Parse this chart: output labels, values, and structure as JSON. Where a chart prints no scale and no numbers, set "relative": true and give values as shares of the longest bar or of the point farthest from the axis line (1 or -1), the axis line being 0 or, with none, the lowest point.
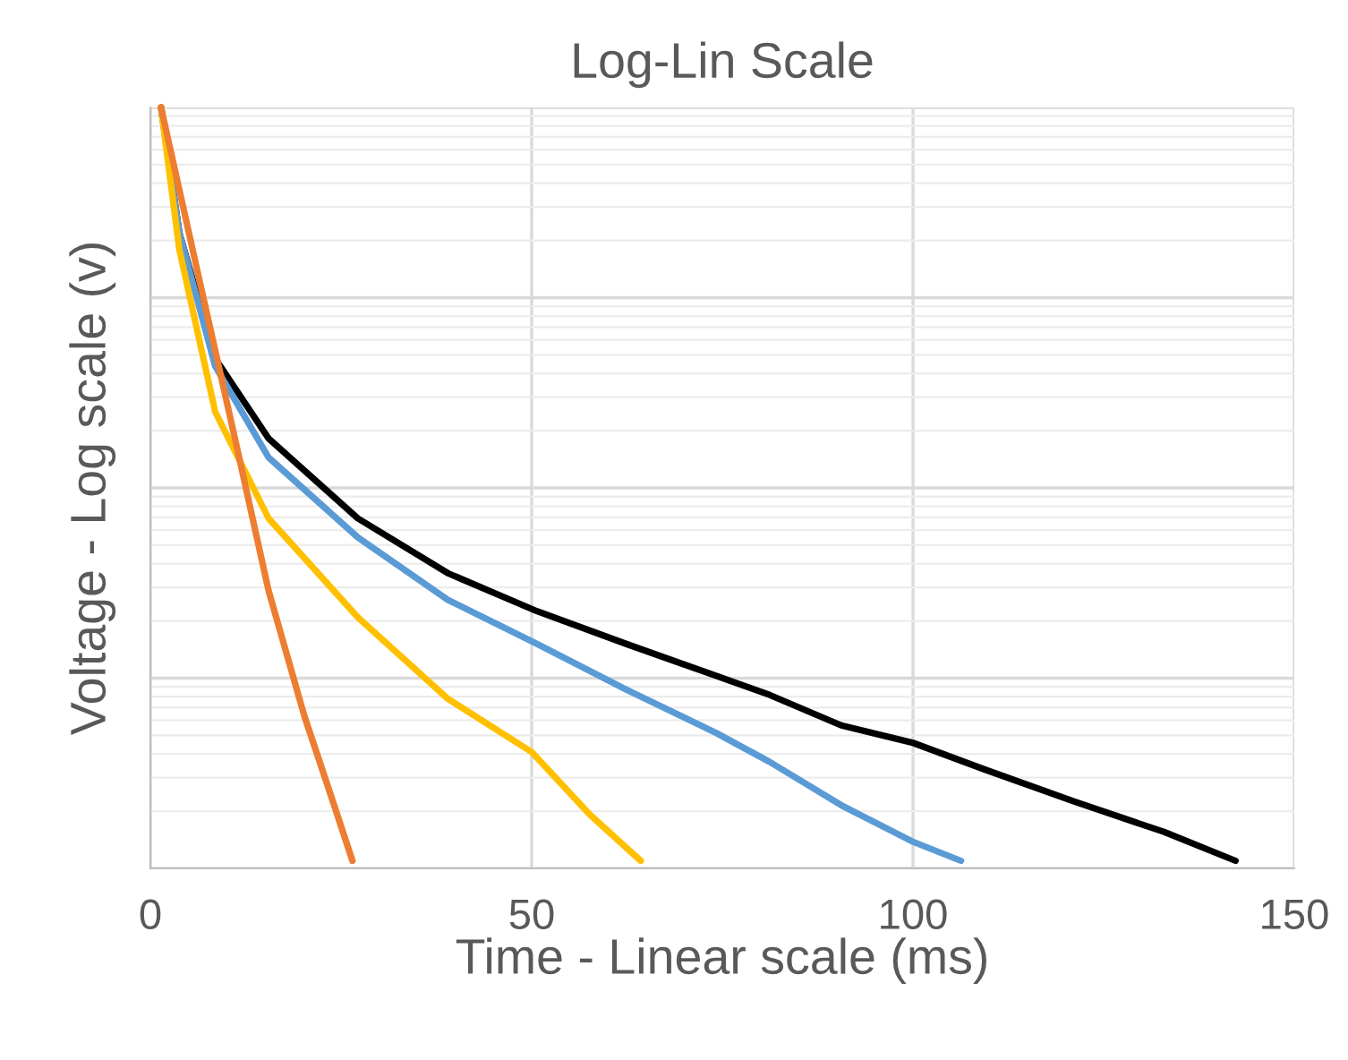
{
  "chart_data": {
    "type": "line",
    "title": "Log-Lin Scale",
    "xlabel": "Time - Linear scale (ms)",
    "ylabel": "Voltage - Log scale (v)",
    "relative": true,
    "grid": true,
    "xlim": [
      0,
      150
    ],
    "xticks": [
      0,
      50,
      100,
      150
    ],
    "tick_labels": "x",
    "line_style": "solid",
    "marker": "none",
    "series": [
      {
        "color": "#000000",
        "x": [
          1.4,
          3.8,
          8.5,
          15.5,
          27.2,
          39,
          50.7,
          62.4,
          74.2,
          81.2,
          90.6,
          100,
          109.4,
          121.1,
          132.9,
          142.3
        ],
        "values": [
          1,
          0.835,
          0.67,
          0.565,
          0.46,
          0.388,
          0.338,
          0.295,
          0.253,
          0.228,
          0.188,
          0.165,
          0.13,
          0.088,
          0.048,
          0.01
        ]
      },
      {
        "color": "#5b9bd5",
        "x": [
          1.4,
          3.8,
          8.5,
          15.5,
          27.2,
          39,
          50.7,
          62.4,
          74.2,
          81.2,
          90.6,
          100,
          106.3
        ],
        "values": [
          1,
          0.835,
          0.66,
          0.54,
          0.435,
          0.353,
          0.295,
          0.235,
          0.178,
          0.14,
          0.083,
          0.035,
          0.01
        ]
      },
      {
        "color": "#ffc000",
        "x": [
          1.4,
          3.8,
          8.5,
          15.5,
          27.2,
          39,
          50,
          57.7,
          64.3
        ],
        "values": [
          1,
          0.813,
          0.6,
          0.46,
          0.33,
          0.223,
          0.153,
          0.07,
          0.01
        ]
      },
      {
        "color": "#ed7d31",
        "x": [
          1.4,
          6.1,
          10.8,
          15.5,
          20.2,
          23.7,
          26.5
        ],
        "values": [
          1,
          0.788,
          0.578,
          0.365,
          0.2,
          0.095,
          0.01
        ]
      }
    ]
  }
}
